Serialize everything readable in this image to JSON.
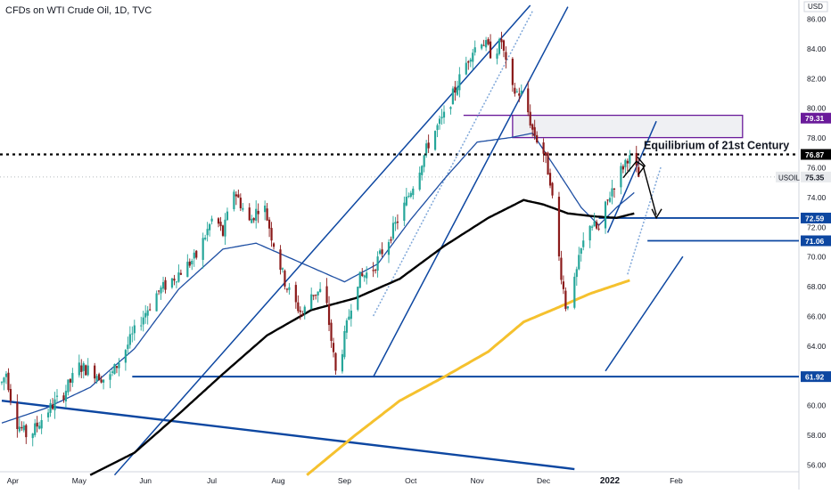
{
  "chart_data": {
    "type": "candlestick",
    "title": "CFDs on WTI Crude Oil, 1D, TVC",
    "currency": "USD",
    "symbol": "USOIL",
    "ylim": [
      55.5,
      87
    ],
    "y_ticks": [
      "56.00",
      "58.00",
      "60.00",
      "62.00",
      "64.00",
      "66.00",
      "68.00",
      "70.00",
      "72.00",
      "74.00",
      "76.00",
      "78.00",
      "80.00",
      "82.00",
      "84.00",
      "86.00"
    ],
    "x_ticks": [
      "Apr",
      "May",
      "Jun",
      "Jul",
      "Aug",
      "Sep",
      "Oct",
      "Nov",
      "Dec",
      "2022",
      "Feb"
    ],
    "x_tick_days": [
      5,
      35,
      65,
      95,
      125,
      155,
      185,
      215,
      245,
      275,
      305
    ],
    "last_day": 288,
    "colors": {
      "up": "#26a69a",
      "down": "#8b1a1a",
      "ma_fast": "#1e4fa3",
      "ma_mid": "#000000",
      "ma_slow": "#f5c12e",
      "line": "#0d47a1",
      "zone": "#6a1b9a",
      "bull_label": "#26a69a",
      "price_label": "#0d47a1"
    },
    "price_anchors": [
      [
        0,
        61.5
      ],
      [
        2,
        62.2
      ],
      [
        6,
        59
      ],
      [
        12,
        57.8
      ],
      [
        20,
        59.5
      ],
      [
        28,
        60.8
      ],
      [
        35,
        62.6
      ],
      [
        42,
        62.2
      ],
      [
        48,
        61.6
      ],
      [
        55,
        63.5
      ],
      [
        62,
        65.5
      ],
      [
        70,
        67.5
      ],
      [
        78,
        68.6
      ],
      [
        88,
        70
      ],
      [
        96,
        72.8
      ],
      [
        100,
        71.5
      ],
      [
        105,
        74.5
      ],
      [
        112,
        72.3
      ],
      [
        118,
        73.8
      ],
      [
        122,
        71.4
      ],
      [
        128,
        68.3
      ],
      [
        132,
        67
      ],
      [
        136,
        66.1
      ],
      [
        140,
        67.5
      ],
      [
        146,
        67.7
      ],
      [
        151,
        62.2
      ],
      [
        154,
        63.8
      ],
      [
        160,
        68.3
      ],
      [
        168,
        69.2
      ],
      [
        175,
        71.2
      ],
      [
        182,
        73.4
      ],
      [
        188,
        75.6
      ],
      [
        194,
        78
      ],
      [
        200,
        79.4
      ],
      [
        206,
        81.6
      ],
      [
        212,
        83.7
      ],
      [
        217,
        84.6
      ],
      [
        222,
        83.5
      ],
      [
        226,
        84.5
      ],
      [
        230,
        81.2
      ],
      [
        236,
        80.9
      ],
      [
        240,
        78.5
      ],
      [
        245,
        77
      ],
      [
        248,
        75.2
      ],
      [
        252,
        69.9
      ],
      [
        255,
        66.7
      ],
      [
        258,
        67.5
      ],
      [
        262,
        70.4
      ],
      [
        266,
        72.3
      ],
      [
        270,
        71.7
      ],
      [
        273,
        73.3
      ],
      [
        276,
        74.6
      ],
      [
        280,
        75.8
      ],
      [
        283,
        76.7
      ],
      [
        286,
        76.2
      ],
      [
        288,
        75.35
      ]
    ],
    "ma_fast_anchors": [
      [
        0,
        58.8
      ],
      [
        20,
        59.8
      ],
      [
        40,
        61.2
      ],
      [
        60,
        63.8
      ],
      [
        80,
        67.8
      ],
      [
        100,
        70.5
      ],
      [
        115,
        70.9
      ],
      [
        135,
        69.6
      ],
      [
        155,
        68.3
      ],
      [
        170,
        69.5
      ],
      [
        185,
        72.5
      ],
      [
        200,
        75.2
      ],
      [
        215,
        77.7
      ],
      [
        230,
        78
      ],
      [
        240,
        78.3
      ],
      [
        252,
        75.6
      ],
      [
        262,
        73.3
      ],
      [
        270,
        72.1
      ],
      [
        278,
        73.3
      ],
      [
        286,
        74.3
      ]
    ],
    "ma_mid_anchors": [
      [
        40,
        55.3
      ],
      [
        60,
        56.8
      ],
      [
        80,
        59.4
      ],
      [
        100,
        62.1
      ],
      [
        120,
        64.7
      ],
      [
        140,
        66.4
      ],
      [
        160,
        67.2
      ],
      [
        180,
        68.5
      ],
      [
        200,
        70.7
      ],
      [
        220,
        72.6
      ],
      [
        236,
        73.8
      ],
      [
        245,
        73.5
      ],
      [
        256,
        72.9
      ],
      [
        268,
        72.7
      ],
      [
        278,
        72.6
      ],
      [
        286,
        72.9
      ]
    ],
    "ma_slow_anchors": [
      [
        138,
        55.3
      ],
      [
        160,
        58
      ],
      [
        180,
        60.3
      ],
      [
        200,
        61.9
      ],
      [
        220,
        63.6
      ],
      [
        236,
        65.6
      ],
      [
        252,
        66.6
      ],
      [
        266,
        67.5
      ],
      [
        278,
        68.1
      ],
      [
        284,
        68.4
      ]
    ],
    "levels": [
      {
        "value": 79.31,
        "label": "79.31"
      },
      {
        "value": 76.87,
        "label": "76.87"
      },
      {
        "value": 75.35,
        "label": "75.35"
      },
      {
        "value": 72.59,
        "label": "72.59"
      },
      {
        "value": 71.06,
        "label": "71.06"
      },
      {
        "value": 61.92,
        "label": "61.92"
      }
    ],
    "annotation": "Equilibrium of 21st Century",
    "supply_zone": {
      "from_day": 231,
      "to_day": 335,
      "top": 79.5,
      "bottom": 78.0
    }
  }
}
